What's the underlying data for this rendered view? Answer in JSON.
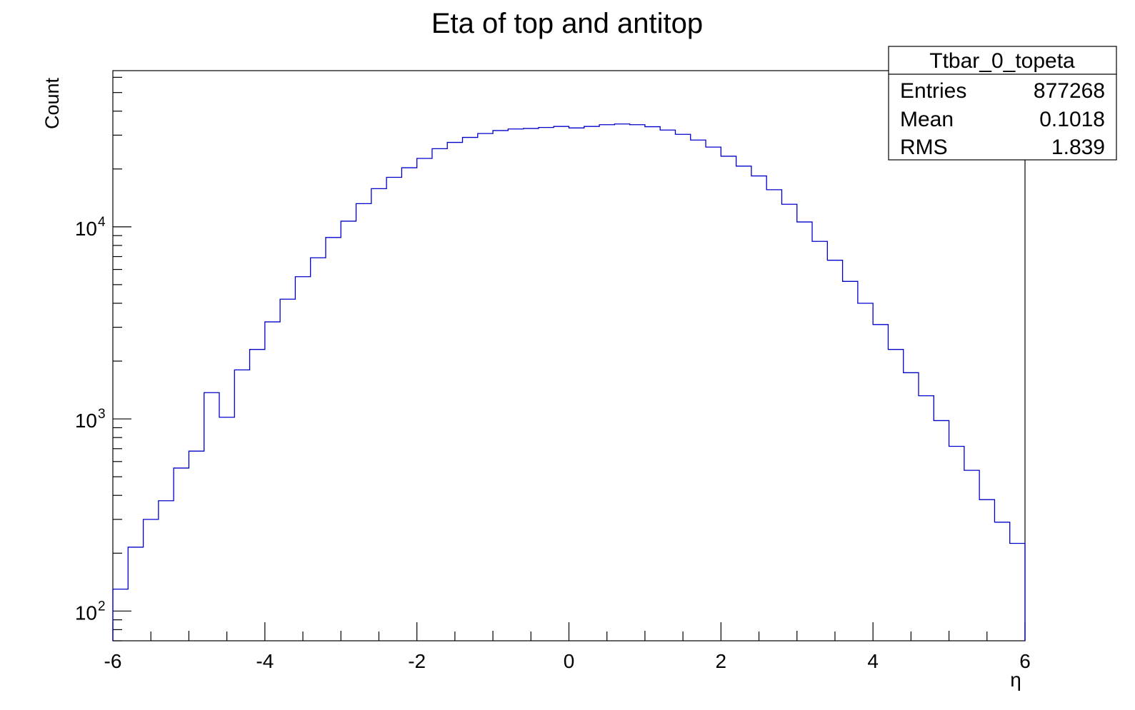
{
  "chart_data": {
    "type": "bar",
    "title": "Eta of top and antitop",
    "xlabel": "η",
    "ylabel": "Count",
    "xlim": [
      -6,
      6
    ],
    "ylim": [
      70,
      65000
    ],
    "y_scale": "log",
    "grid": false,
    "bin_edges": [
      -6.0,
      -5.8,
      -5.6,
      -5.4,
      -5.2,
      -5.0,
      -4.8,
      -4.6,
      -4.4,
      -4.2,
      -4.0,
      -3.8,
      -3.6,
      -3.4,
      -3.2,
      -3.0,
      -2.8,
      -2.6,
      -2.4,
      -2.2,
      -2.0,
      -1.8,
      -1.6,
      -1.4,
      -1.2,
      -1.0,
      -0.8,
      -0.6,
      -0.4,
      -0.2,
      0.0,
      0.2,
      0.4,
      0.6,
      0.8,
      1.0,
      1.2,
      1.4,
      1.6,
      1.8,
      2.0,
      2.2,
      2.4,
      2.6,
      2.8,
      3.0,
      3.2,
      3.4,
      3.6,
      3.8,
      4.0,
      4.2,
      4.4,
      4.6,
      4.8,
      5.0,
      5.2,
      5.4,
      5.6,
      5.8,
      6.0
    ],
    "values": [
      130,
      215,
      300,
      375,
      555,
      680,
      1370,
      1020,
      1800,
      2300,
      3200,
      4200,
      5500,
      6900,
      8800,
      10700,
      13200,
      15800,
      18100,
      20300,
      22700,
      25500,
      27500,
      29200,
      30600,
      31700,
      32300,
      32500,
      32900,
      33300,
      32700,
      33300,
      34000,
      34300,
      34000,
      33200,
      31900,
      30300,
      28300,
      26000,
      23300,
      20700,
      18400,
      15600,
      13100,
      10600,
      8400,
      6700,
      5200,
      4000,
      3100,
      2300,
      1740,
      1320,
      980,
      720,
      540,
      380,
      290,
      225
    ],
    "x_ticks": [
      {
        "value": -6,
        "label": "-6"
      },
      {
        "value": -4,
        "label": "-4"
      },
      {
        "value": -2,
        "label": "-2"
      },
      {
        "value": 0,
        "label": "0"
      },
      {
        "value": 2,
        "label": "2"
      },
      {
        "value": 4,
        "label": "4"
      },
      {
        "value": 6,
        "label": "6"
      }
    ],
    "y_ticks": [
      {
        "value": 100,
        "base": "10",
        "exponent": "2"
      },
      {
        "value": 1000,
        "base": "10",
        "exponent": "3"
      },
      {
        "value": 10000,
        "base": "10",
        "exponent": "4"
      }
    ],
    "line_color": "#0000cc",
    "stats_box": {
      "name": "Ttbar_0_topeta",
      "placement": "top-right",
      "rows": [
        {
          "label": "Entries",
          "value": "877268"
        },
        {
          "label": "Mean",
          "value": "0.1018"
        },
        {
          "label": "RMS",
          "value": "1.839"
        }
      ]
    }
  }
}
